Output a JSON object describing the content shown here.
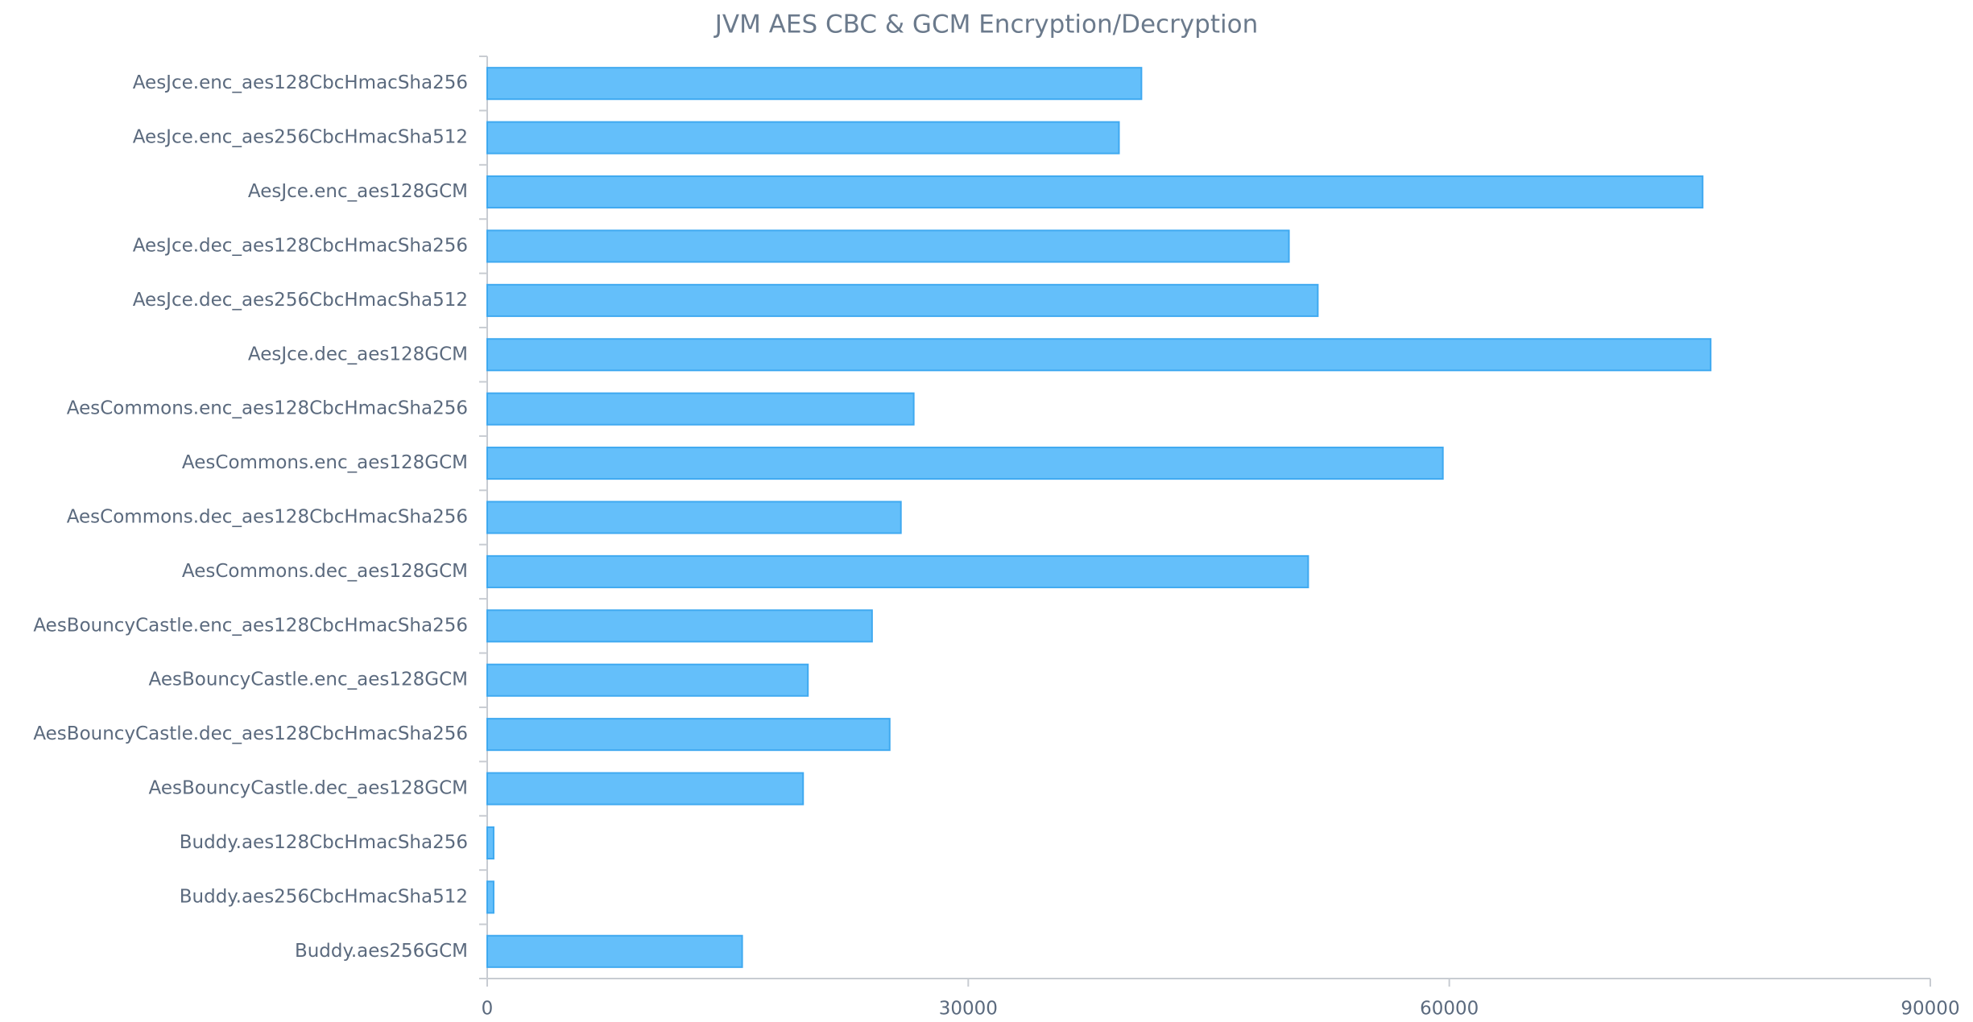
{
  "chart_data": {
    "type": "barh",
    "title": "JVM AES CBC & GCM Encryption/Decryption",
    "categories": [
      "AesJce.enc_aes128CbcHmacSha256",
      "AesJce.enc_aes256CbcHmacSha512",
      "AesJce.enc_aes128GCM",
      "AesJce.dec_aes128CbcHmacSha256",
      "AesJce.dec_aes256CbcHmacSha512",
      "AesJce.dec_aes128GCM",
      "AesCommons.enc_aes128CbcHmacSha256",
      "AesCommons.enc_aes128GCM",
      "AesCommons.dec_aes128CbcHmacSha256",
      "AesCommons.dec_aes128GCM",
      "AesBouncyCastle.enc_aes128CbcHmacSha256",
      "AesBouncyCastle.enc_aes128GCM",
      "AesBouncyCastle.dec_aes128CbcHmacSha256",
      "AesBouncyCastle.dec_aes128GCM",
      "Buddy.aes128CbcHmacSha256",
      "Buddy.aes256CbcHmacSha512",
      "Buddy.aes256GCM"
    ],
    "values": [
      40800,
      39400,
      75800,
      50000,
      51800,
      76300,
      26600,
      59600,
      25800,
      51200,
      24000,
      20000,
      25100,
      19700,
      400,
      400,
      15900
    ],
    "color": "#64bffa",
    "border_color": "#3fa9f0",
    "xlim": [
      0,
      90000
    ],
    "xticks": [
      0,
      30000,
      60000,
      90000
    ],
    "grid": false
  }
}
